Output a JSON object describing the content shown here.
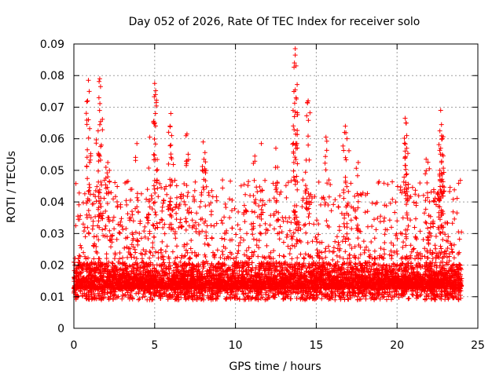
{
  "chart_data": {
    "type": "scatter",
    "title": "Day 052 of 2026, Rate Of TEC Index for receiver solo",
    "xlabel": "GPS time / hours",
    "ylabel": "ROTI / TECUs",
    "xlim": [
      0,
      25
    ],
    "ylim": [
      0,
      0.09
    ],
    "xticks": [
      0,
      5,
      10,
      15,
      20,
      25
    ],
    "xtick_labels": [
      "0",
      "5",
      "10",
      "15",
      "20",
      "25"
    ],
    "yticks": [
      0,
      0.01,
      0.02,
      0.03,
      0.04,
      0.05,
      0.06,
      0.07,
      0.08,
      0.09
    ],
    "ytick_labels": [
      "0",
      "0.01",
      "0.02",
      "0.03",
      "0.04",
      "0.05",
      "0.06",
      "0.07",
      "0.08",
      "0.09"
    ],
    "grid": true,
    "marker": "+",
    "color": "#ff0000",
    "x_data_range": [
      0,
      24
    ],
    "series": [
      {
        "name": "ROTI",
        "typical_band": [
          0.005,
          0.025
        ],
        "spikes": [
          {
            "x": 0.9,
            "y": 0.0785
          },
          {
            "x": 0.95,
            "y": 0.075
          },
          {
            "x": 0.85,
            "y": 0.072
          },
          {
            "x": 1.6,
            "y": 0.079
          },
          {
            "x": 1.65,
            "y": 0.0765
          },
          {
            "x": 1.55,
            "y": 0.073
          },
          {
            "x": 0.9,
            "y": 0.066
          },
          {
            "x": 1.5,
            "y": 0.0625
          },
          {
            "x": 1.7,
            "y": 0.058
          },
          {
            "x": 1.6,
            "y": 0.0545
          },
          {
            "x": 2.1,
            "y": 0.0525
          },
          {
            "x": 2.2,
            "y": 0.05
          },
          {
            "x": 3.9,
            "y": 0.0585
          },
          {
            "x": 4.7,
            "y": 0.0605
          },
          {
            "x": 5.0,
            "y": 0.0775
          },
          {
            "x": 5.05,
            "y": 0.074
          },
          {
            "x": 5.1,
            "y": 0.0715
          },
          {
            "x": 5.05,
            "y": 0.068
          },
          {
            "x": 5.0,
            "y": 0.065
          },
          {
            "x": 6.0,
            "y": 0.068
          },
          {
            "x": 5.95,
            "y": 0.064
          },
          {
            "x": 6.05,
            "y": 0.061
          },
          {
            "x": 6.0,
            "y": 0.058
          },
          {
            "x": 7.0,
            "y": 0.0615
          },
          {
            "x": 7.0,
            "y": 0.053
          },
          {
            "x": 8.0,
            "y": 0.059
          },
          {
            "x": 8.05,
            "y": 0.0535
          },
          {
            "x": 8.1,
            "y": 0.05
          },
          {
            "x": 11.2,
            "y": 0.0545
          },
          {
            "x": 11.6,
            "y": 0.0585
          },
          {
            "x": 12.5,
            "y": 0.057
          },
          {
            "x": 12.6,
            "y": 0.051
          },
          {
            "x": 13.7,
            "y": 0.0885
          },
          {
            "x": 13.7,
            "y": 0.0865
          },
          {
            "x": 13.65,
            "y": 0.084
          },
          {
            "x": 13.7,
            "y": 0.0755
          },
          {
            "x": 13.75,
            "y": 0.073
          },
          {
            "x": 13.7,
            "y": 0.0685
          },
          {
            "x": 13.65,
            "y": 0.067
          },
          {
            "x": 14.5,
            "y": 0.072
          },
          {
            "x": 14.45,
            "y": 0.0715
          },
          {
            "x": 13.8,
            "y": 0.0585
          },
          {
            "x": 14.5,
            "y": 0.058
          },
          {
            "x": 15.6,
            "y": 0.0605
          },
          {
            "x": 16.8,
            "y": 0.064
          },
          {
            "x": 16.75,
            "y": 0.062
          },
          {
            "x": 16.9,
            "y": 0.06
          },
          {
            "x": 17.6,
            "y": 0.0525
          },
          {
            "x": 20.5,
            "y": 0.0665
          },
          {
            "x": 20.55,
            "y": 0.065
          },
          {
            "x": 20.6,
            "y": 0.061
          },
          {
            "x": 20.6,
            "y": 0.057
          },
          {
            "x": 20.5,
            "y": 0.054
          },
          {
            "x": 21.8,
            "y": 0.0535
          },
          {
            "x": 22.0,
            "y": 0.0505
          },
          {
            "x": 22.7,
            "y": 0.069
          },
          {
            "x": 22.75,
            "y": 0.0645
          },
          {
            "x": 22.65,
            "y": 0.0625
          },
          {
            "x": 22.8,
            "y": 0.06
          },
          {
            "x": 22.7,
            "y": 0.057
          },
          {
            "x": 22.8,
            "y": 0.055
          },
          {
            "x": 22.75,
            "y": 0.0525
          },
          {
            "x": 22.65,
            "y": 0.05
          }
        ]
      }
    ]
  }
}
